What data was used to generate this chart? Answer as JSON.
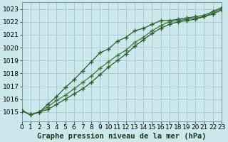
{
  "title": "Graphe pression niveau de la mer (hPa)",
  "background_color": "#cce8ec",
  "grid_color": "#aacccc",
  "line_color_dark": "#2d5a2d",
  "line_color_mid": "#3a7a3a",
  "xlim": [
    0,
    23
  ],
  "ylim": [
    1014.3,
    1023.5
  ],
  "yticks": [
    1015,
    1016,
    1017,
    1018,
    1019,
    1020,
    1021,
    1022,
    1023
  ],
  "xticks": [
    0,
    1,
    2,
    3,
    4,
    5,
    6,
    7,
    8,
    9,
    10,
    11,
    12,
    13,
    14,
    15,
    16,
    17,
    18,
    19,
    20,
    21,
    22,
    23
  ],
  "hours": [
    0,
    1,
    2,
    3,
    4,
    5,
    6,
    7,
    8,
    9,
    10,
    11,
    12,
    13,
    14,
    15,
    16,
    17,
    18,
    19,
    20,
    21,
    22,
    23
  ],
  "line_top": [
    1015.1,
    1014.8,
    1015.0,
    1015.6,
    1016.2,
    1016.9,
    1017.5,
    1018.2,
    1018.9,
    1019.6,
    1019.9,
    1020.5,
    1020.8,
    1021.3,
    1021.5,
    1021.8,
    1022.1,
    1022.1,
    1022.2,
    1022.3,
    1022.4,
    1022.5,
    1022.8,
    1023.1
  ],
  "line_mid": [
    1015.1,
    1014.8,
    1015.0,
    1015.4,
    1015.9,
    1016.3,
    1016.8,
    1017.3,
    1017.8,
    1018.4,
    1018.9,
    1019.4,
    1019.8,
    1020.4,
    1020.8,
    1021.3,
    1021.7,
    1022.0,
    1022.1,
    1022.2,
    1022.3,
    1022.4,
    1022.7,
    1023.0
  ],
  "line_bot": [
    1015.1,
    1014.8,
    1015.0,
    1015.2,
    1015.6,
    1016.0,
    1016.4,
    1016.8,
    1017.3,
    1017.9,
    1018.5,
    1019.0,
    1019.5,
    1020.1,
    1020.6,
    1021.1,
    1021.5,
    1021.8,
    1022.0,
    1022.1,
    1022.2,
    1022.4,
    1022.6,
    1022.9
  ],
  "linewidth": 0.9,
  "markersize": 4,
  "title_fontsize": 7.5,
  "tick_fontsize": 6.5
}
